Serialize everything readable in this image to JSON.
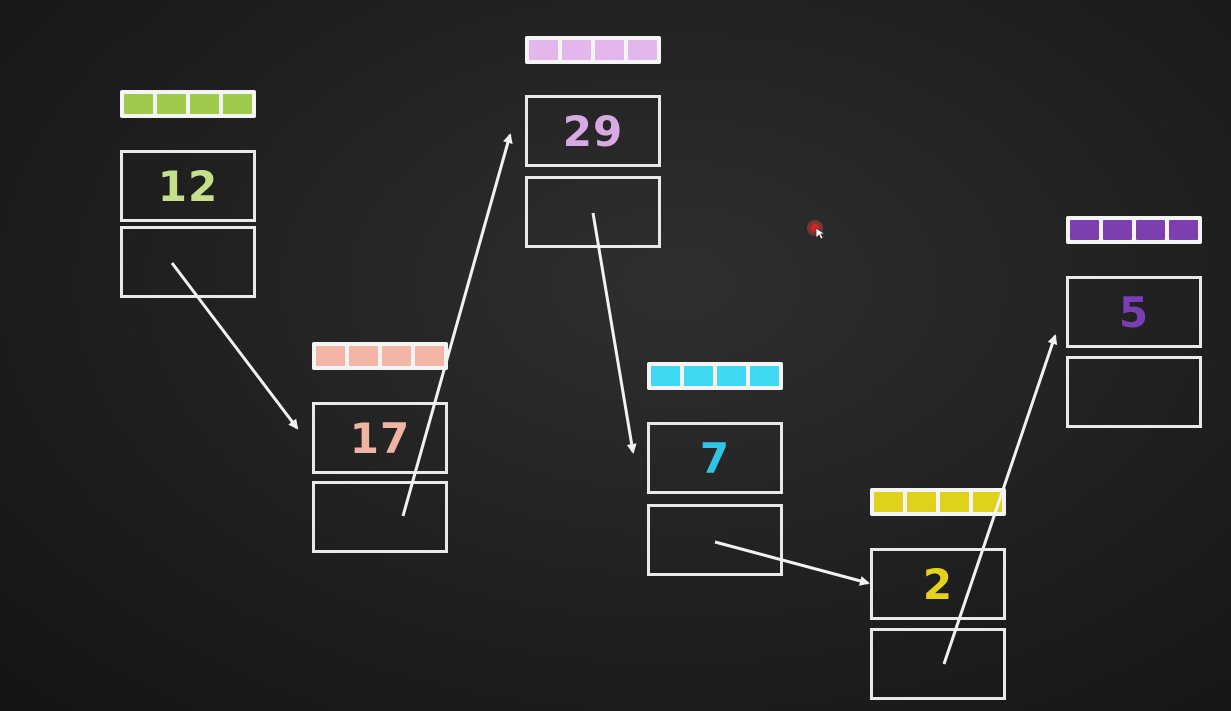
{
  "diagram": {
    "type": "linked-list",
    "nodes": [
      {
        "id": "n12",
        "value": "12",
        "color": "#9fc94a",
        "text_color": "#c5e08a"
      },
      {
        "id": "n17",
        "value": "17",
        "color": "#f3b6a6",
        "text_color": "#f0b4a3"
      },
      {
        "id": "n29",
        "value": "29",
        "color": "#e3b6ec",
        "text_color": "#d9a9e6"
      },
      {
        "id": "n7",
        "value": "7",
        "color": "#3fd8f0",
        "text_color": "#2fc6e6"
      },
      {
        "id": "n2",
        "value": "2",
        "color": "#e0d21a",
        "text_color": "#e6d21a"
      },
      {
        "id": "n5",
        "value": "5",
        "color": "#7d3fb0",
        "text_color": "#7a3db4"
      }
    ],
    "links": [
      {
        "from": "n12",
        "to": "n17"
      },
      {
        "from": "n17",
        "to": "n29"
      },
      {
        "from": "n29",
        "to": "n7"
      },
      {
        "from": "n7",
        "to": "n2"
      },
      {
        "from": "n2",
        "to": "n5"
      }
    ]
  }
}
